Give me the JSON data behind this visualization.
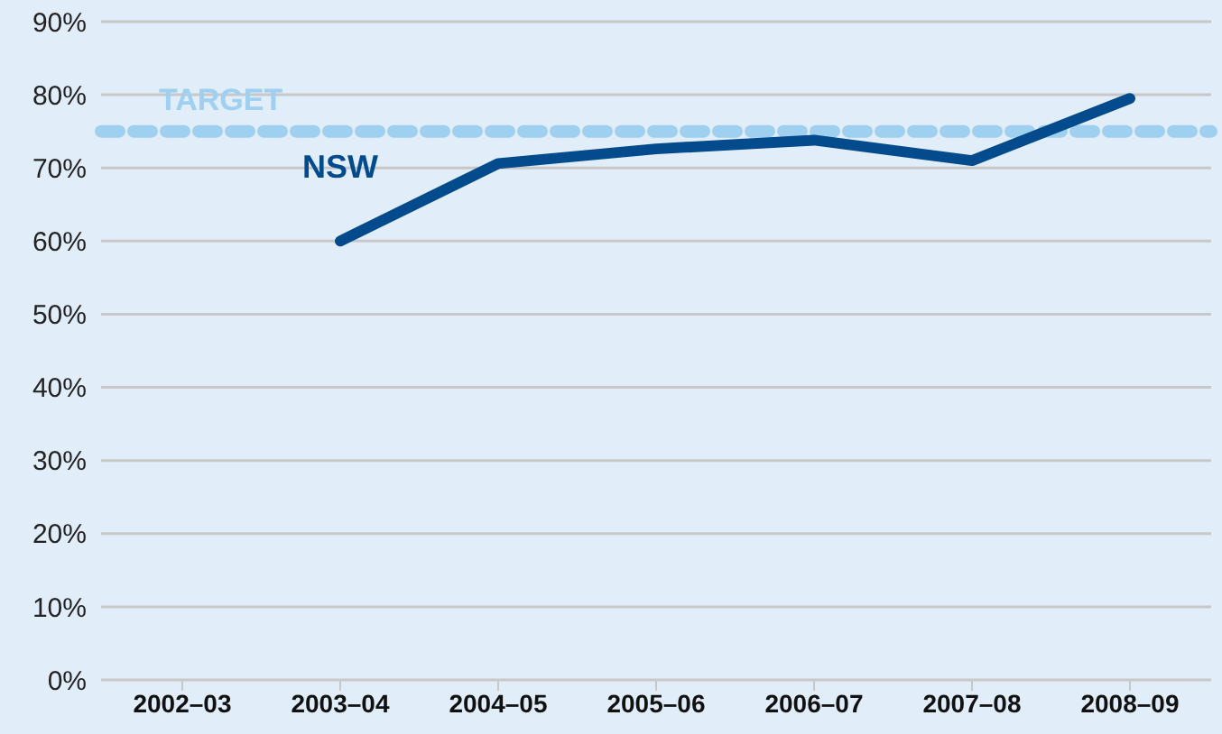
{
  "chart_data": {
    "type": "line",
    "categories": [
      "2002–03",
      "2003–04",
      "2004–05",
      "2005–06",
      "2006–07",
      "2007–08",
      "2008–09"
    ],
    "series": [
      {
        "name": "NSW",
        "color": "#034b8c",
        "values": [
          null,
          60,
          70.6,
          72.6,
          73.8,
          71,
          79.5
        ]
      }
    ],
    "ylim": [
      0,
      90
    ],
    "yticks": [
      {
        "value": 0,
        "label": "0%"
      },
      {
        "value": 10,
        "label": "10%"
      },
      {
        "value": 20,
        "label": "20%"
      },
      {
        "value": 30,
        "label": "30%"
      },
      {
        "value": 40,
        "label": "40%"
      },
      {
        "value": 50,
        "label": "50%"
      },
      {
        "value": 60,
        "label": "60%"
      },
      {
        "value": 70,
        "label": "70%"
      },
      {
        "value": 80,
        "label": "80%"
      },
      {
        "value": 90,
        "label": "90%"
      }
    ],
    "ref_lines": [
      {
        "axis": "y",
        "value": 75,
        "label": "TARGET",
        "color": "#9fd0ef",
        "line_style": "dashed"
      }
    ],
    "grid": "y",
    "marker": "none",
    "line_style": "solid"
  }
}
